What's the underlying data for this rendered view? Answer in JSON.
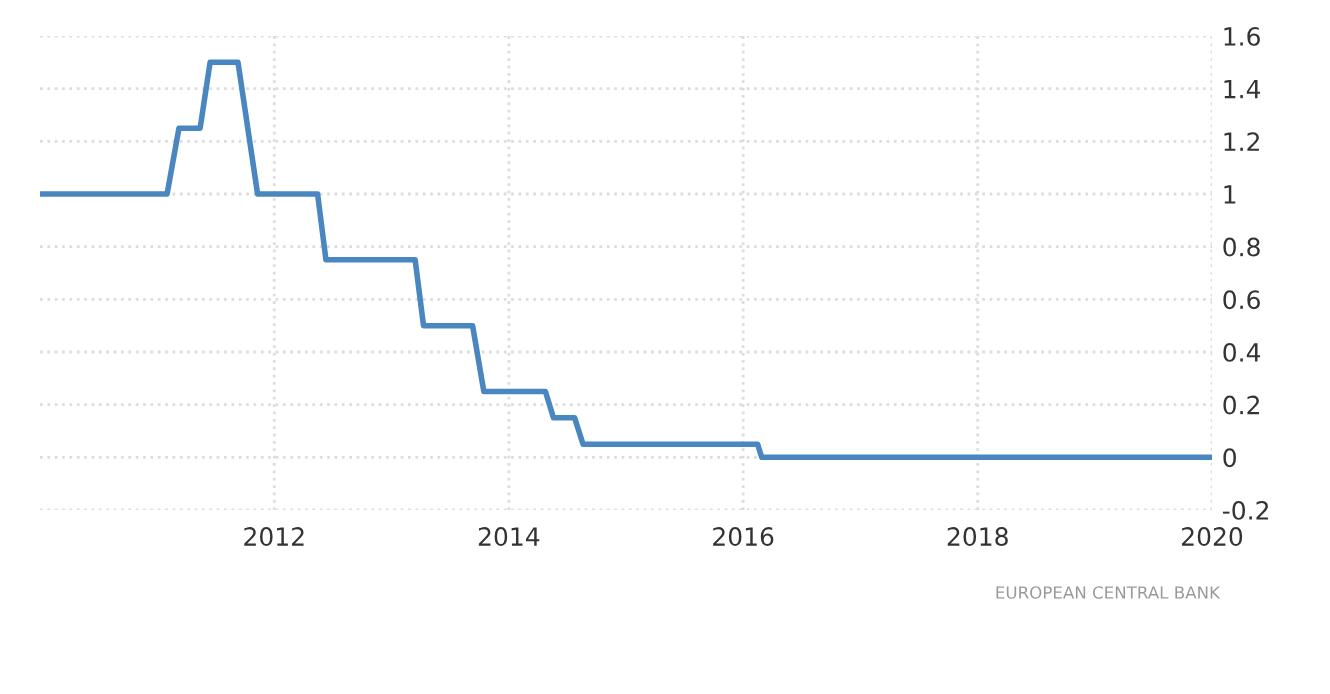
{
  "chart_data": {
    "type": "line",
    "x": [
      "2010-01-01",
      "2011-02-01",
      "2011-03-10",
      "2011-05-15",
      "2011-06-15",
      "2011-09-10",
      "2011-11-10",
      "2012-05-15",
      "2012-06-10",
      "2013-03-15",
      "2013-04-10",
      "2013-09-10",
      "2013-10-15",
      "2014-04-25",
      "2014-05-20",
      "2014-07-25",
      "2014-08-20",
      "2016-02-15",
      "2016-02-28",
      "2020-01-01"
    ],
    "series": [
      {
        "color": "#4a86bf",
        "values": [
          1,
          1,
          1.25,
          1.25,
          1.5,
          1.5,
          1,
          1,
          0.75,
          0.75,
          0.5,
          0.5,
          0.25,
          0.25,
          0.15,
          0.15,
          0.05,
          0.05,
          0,
          0
        ]
      }
    ],
    "xlim": [
      "2010-01-01",
      "2020-01-01"
    ],
    "xticks": [
      {
        "value": "2012-01-01",
        "label": "2012"
      },
      {
        "value": "2014-01-01",
        "label": "2014"
      },
      {
        "value": "2016-01-01",
        "label": "2016"
      },
      {
        "value": "2018-01-01",
        "label": "2018"
      },
      {
        "value": "2020-01-01",
        "label": "2020"
      }
    ],
    "ylim": [
      -0.2,
      1.6
    ],
    "yticks": [
      -0.2,
      0,
      0.2,
      0.4,
      0.6,
      0.8,
      1,
      1.2,
      1.4,
      1.6
    ],
    "grid": true,
    "marker": "none",
    "line_style": "solid",
    "annotations": [
      "EUROPEAN CENTRAL BANK"
    ]
  }
}
